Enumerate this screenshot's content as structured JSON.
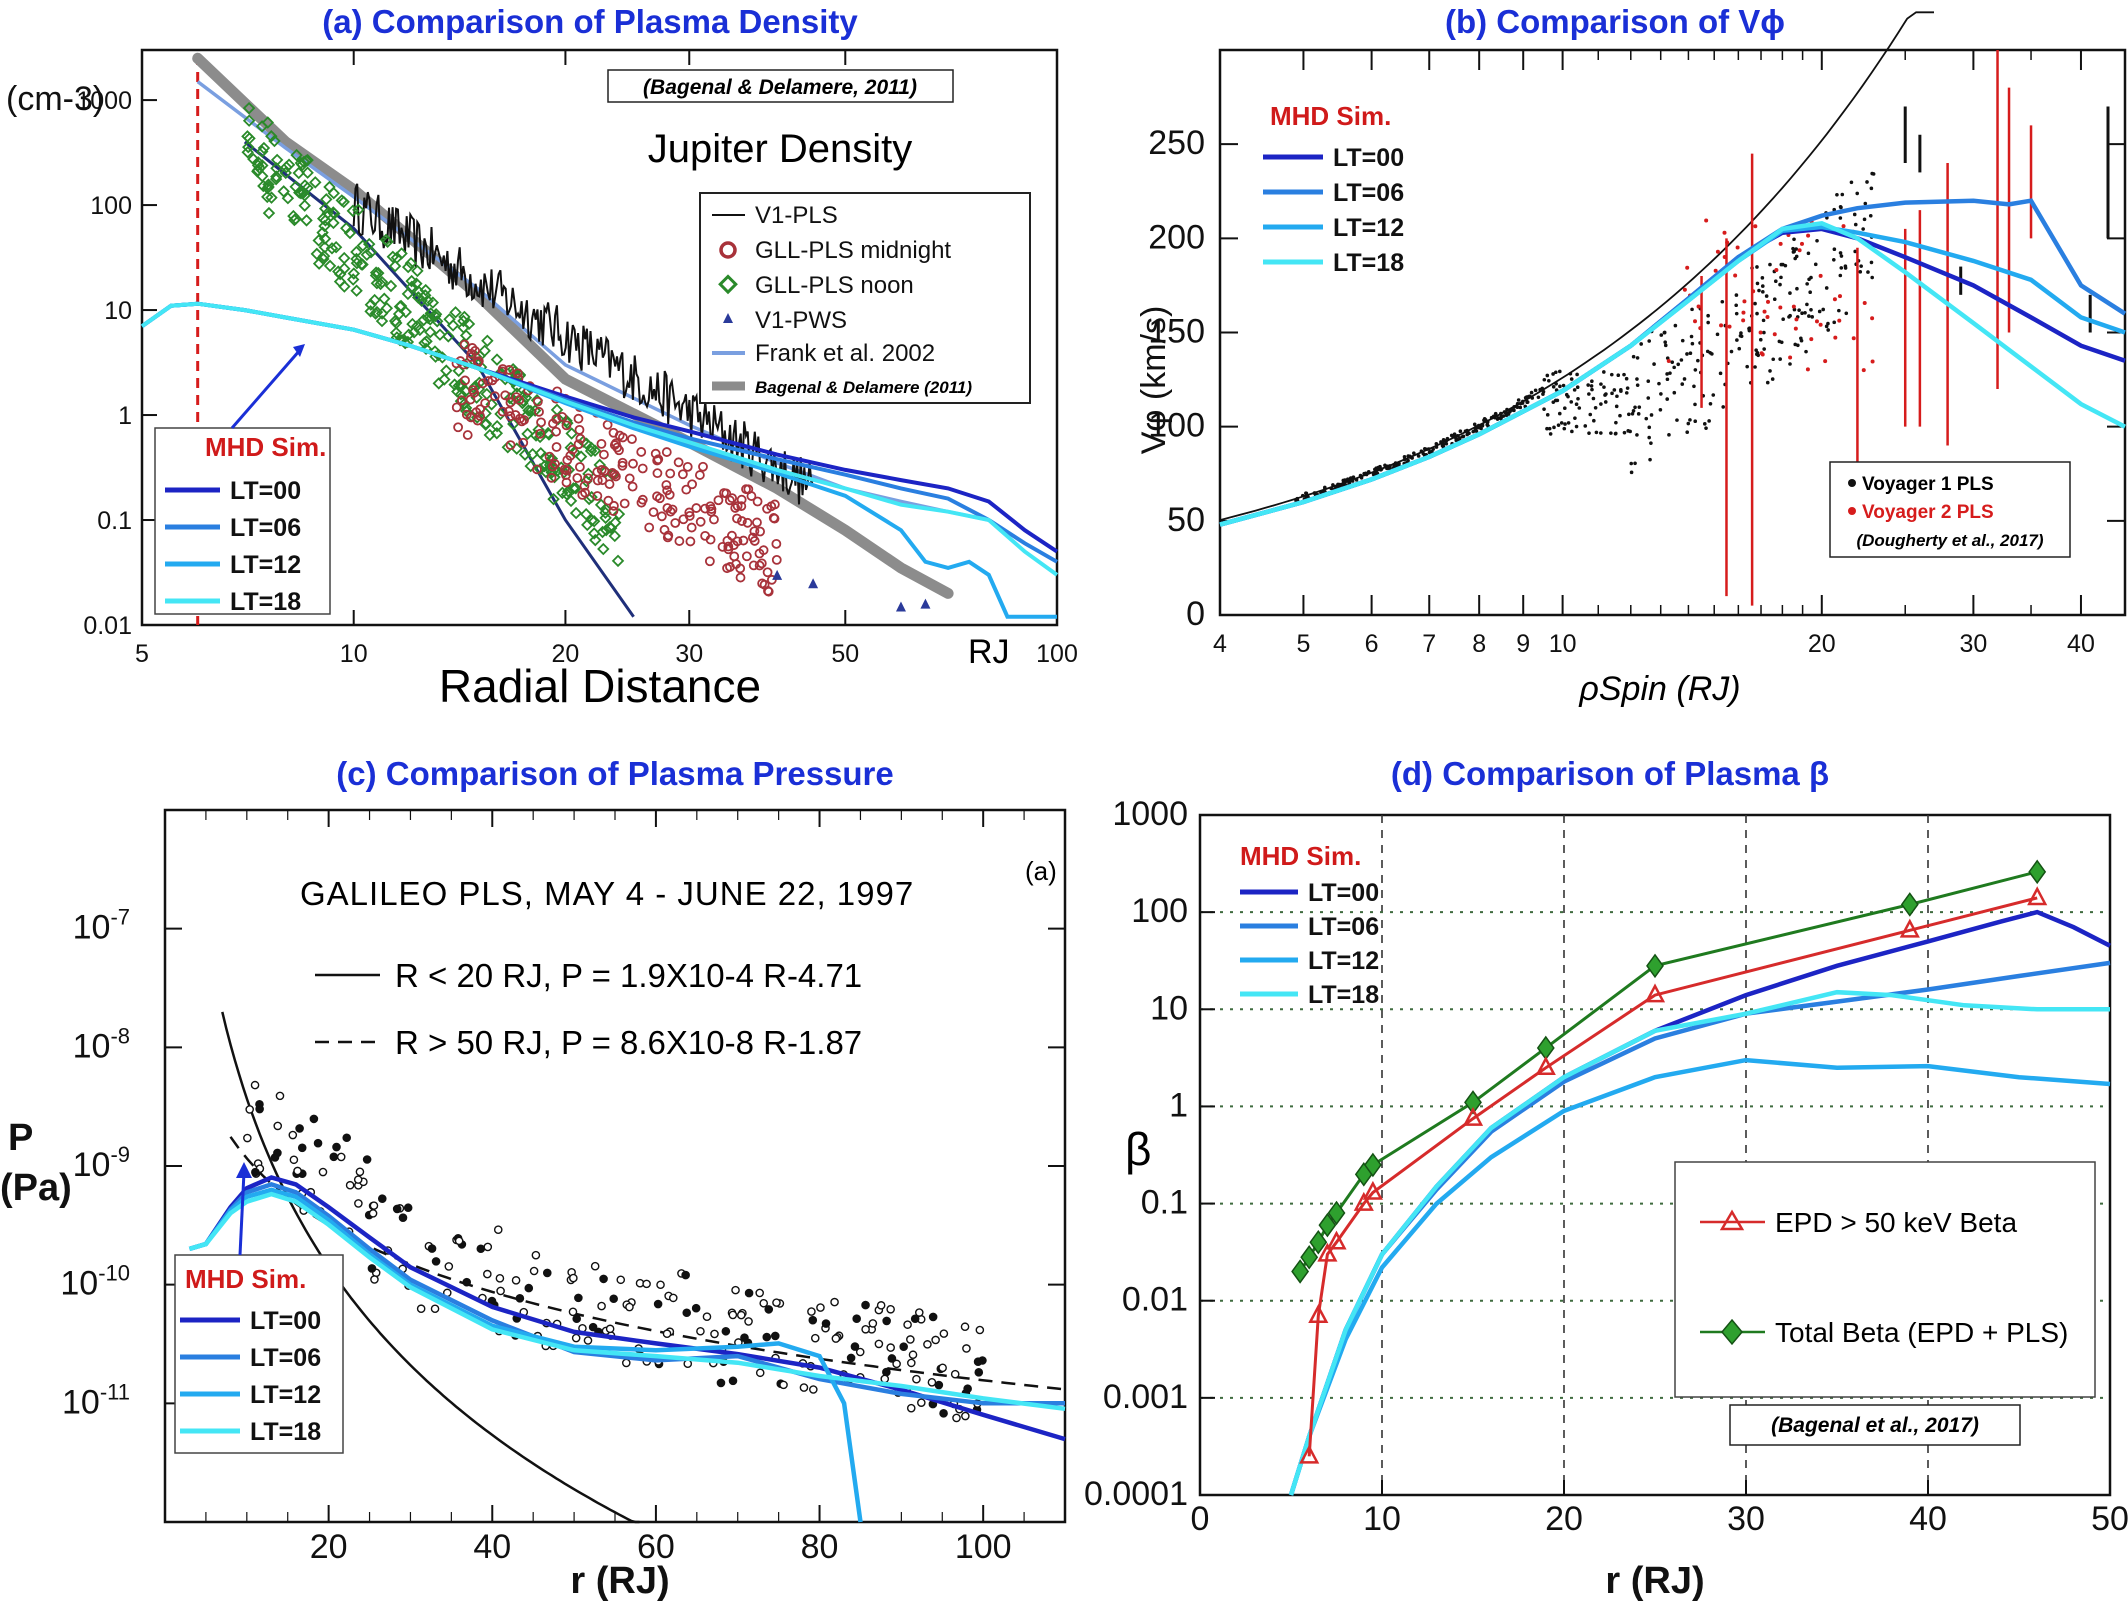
{
  "colors": {
    "title_blue": "#1a2fd6",
    "mhd_label_red": "#d01a1a",
    "lt00": "#1c24c4",
    "lt06": "#2a7fe0",
    "lt12": "#23aaf0",
    "lt18": "#44e6f5",
    "galileo_midnight": "#a8323a",
    "galileo_noon": "#2a8a2a",
    "bagenal_model": "#8c8c8c",
    "frank_model": "#7a9fe0",
    "voyager2": "#d61c1c",
    "epd_red": "#d62b2b",
    "total_green": "#1f7a1f"
  },
  "chart_data": [
    {
      "panel": "a",
      "type": "line",
      "title": "(a) Comparison of Plasma Density",
      "unit_label": "(cm-3)",
      "annotation": "Jupiter Density",
      "citation": "(Bagenal & Delamere, 2011)",
      "xlabel": "Radial Distance",
      "xunit": "RJ",
      "xscale": "log",
      "yscale": "log",
      "xlim": [
        5,
        100
      ],
      "ylim": [
        0.01,
        3000
      ],
      "x_ticks": [
        "5",
        "10",
        "20",
        "30",
        "50",
        "100"
      ],
      "y_ticks": [
        "0.01",
        "0.1",
        "1",
        "10",
        "100",
        "1000"
      ],
      "reference_line_x": 6,
      "legend": [
        "V1-PLS",
        "GLL-PLS midnight",
        "GLL-PLS noon",
        "V1-PWS",
        "Frank et al. 2002",
        "Bagenal & Delamere (2011)"
      ],
      "mhd_legend_title": "MHD Sim.",
      "series": [
        {
          "name": "LT=00",
          "x": [
            5,
            5.5,
            6,
            7,
            8,
            10,
            12,
            15,
            20,
            25,
            30,
            40,
            50,
            60,
            70,
            80,
            90,
            100
          ],
          "y": [
            7,
            11,
            11.5,
            10,
            8.5,
            6.5,
            4.6,
            2.8,
            1.5,
            0.95,
            0.7,
            0.42,
            0.3,
            0.24,
            0.2,
            0.15,
            0.08,
            0.05
          ]
        },
        {
          "name": "LT=06",
          "x": [
            5,
            5.5,
            6,
            7,
            8,
            10,
            12,
            15,
            20,
            25,
            30,
            40,
            50,
            60,
            70,
            80,
            90,
            100
          ],
          "y": [
            7,
            11,
            11.5,
            10,
            8.5,
            6.5,
            4.6,
            2.8,
            1.4,
            0.85,
            0.6,
            0.38,
            0.27,
            0.2,
            0.16,
            0.1,
            0.06,
            0.04
          ]
        },
        {
          "name": "LT=12",
          "x": [
            5,
            5.5,
            6,
            7,
            8,
            10,
            12,
            15,
            20,
            25,
            30,
            40,
            50,
            60,
            65,
            70,
            75,
            80,
            85,
            90,
            100
          ],
          "y": [
            7,
            11,
            11.5,
            10,
            8.5,
            6.5,
            4.6,
            2.8,
            1.3,
            0.75,
            0.5,
            0.28,
            0.17,
            0.08,
            0.04,
            0.035,
            0.04,
            0.03,
            0.012,
            0.012,
            0.012
          ]
        },
        {
          "name": "LT=18",
          "x": [
            5,
            5.5,
            6,
            7,
            8,
            10,
            12,
            15,
            20,
            25,
            30,
            40,
            50,
            60,
            70,
            80,
            90,
            100
          ],
          "y": [
            7,
            11,
            11.5,
            10,
            8.5,
            6.5,
            4.6,
            2.8,
            1.35,
            0.8,
            0.55,
            0.3,
            0.2,
            0.14,
            0.12,
            0.1,
            0.05,
            0.03
          ]
        }
      ]
    },
    {
      "panel": "b",
      "type": "line",
      "title": "(b) Comparison of Vϕ",
      "ylabel": "Vφ (km/s)",
      "xlabel": "ρSpin (RJ)",
      "xscale": "log",
      "xlim": [
        4,
        45
      ],
      "ylim": [
        0,
        300
      ],
      "x_ticks": [
        "4",
        "5",
        "6",
        "7",
        "8",
        "9",
        "10",
        "20",
        "30",
        "40"
      ],
      "y_ticks": [
        "0",
        "50",
        "100",
        "150",
        "200",
        "250"
      ],
      "legend": [
        "Voyager 1 PLS",
        "Voyager 2 PLS"
      ],
      "citation": "(Dougherty et al., 2017)",
      "mhd_legend_title": "MHD Sim.",
      "series": [
        {
          "name": "LT=00",
          "x": [
            4,
            5,
            6,
            7,
            8,
            10,
            12,
            14,
            16,
            18,
            20,
            22,
            25,
            30,
            35,
            40,
            45
          ],
          "y": [
            48,
            60,
            72,
            84,
            96,
            119,
            143,
            168,
            190,
            203,
            205,
            200,
            190,
            175,
            158,
            143,
            135
          ]
        },
        {
          "name": "LT=06",
          "x": [
            4,
            5,
            6,
            7,
            8,
            10,
            12,
            14,
            16,
            18,
            20,
            22,
            25,
            30,
            33,
            35,
            40,
            45
          ],
          "y": [
            48,
            60,
            72,
            84,
            96,
            119,
            143,
            168,
            190,
            205,
            212,
            216,
            219,
            220,
            218,
            220,
            175,
            160
          ]
        },
        {
          "name": "LT=12",
          "x": [
            4,
            5,
            6,
            7,
            8,
            10,
            12,
            14,
            16,
            18,
            20,
            22,
            25,
            30,
            35,
            40,
            45
          ],
          "y": [
            48,
            60,
            72,
            84,
            96,
            119,
            143,
            167,
            188,
            204,
            206,
            203,
            198,
            188,
            178,
            158,
            150
          ]
        },
        {
          "name": "LT=18",
          "x": [
            4,
            5,
            6,
            7,
            8,
            10,
            12,
            14,
            16,
            18,
            20,
            22,
            25,
            30,
            35,
            40,
            45
          ],
          "y": [
            48,
            60,
            72,
            84,
            96,
            119,
            143,
            167,
            188,
            205,
            208,
            200,
            182,
            155,
            132,
            112,
            100
          ]
        }
      ]
    },
    {
      "panel": "c",
      "type": "line",
      "title": "(c) Comparison of Plasma Pressure",
      "ylabel_lines": [
        "P",
        "(Pa)"
      ],
      "xlabel": "r (RJ)",
      "yscale": "log",
      "xlim": [
        0,
        110
      ],
      "ylim": [
        1e-12,
        1e-06
      ],
      "x_ticks": [
        "20",
        "40",
        "60",
        "80",
        "100"
      ],
      "y_ticks": [
        "10-7",
        "10-8",
        "10-9",
        "10-10",
        "10-11"
      ],
      "panel_tag": "(a)",
      "annotation_lines": [
        "GALILEO PLS, MAY 4 - JUNE 22, 1997",
        "R < 20 RJ, P = 1.9X10-4 R-4.71",
        "R > 50 RJ, P = 8.6X10-8 R-1.87"
      ],
      "mhd_legend_title": "MHD Sim.",
      "series": [
        {
          "name": "LT=00",
          "x": [
            3,
            5,
            8,
            10,
            13,
            16,
            20,
            25,
            30,
            40,
            50,
            60,
            70,
            80,
            90,
            100,
            110
          ],
          "y": [
            2e-10,
            2.2e-10,
            4.5e-10,
            6.5e-10,
            8e-10,
            7e-10,
            4.5e-10,
            2.5e-10,
            1.4e-10,
            6.5e-11,
            4e-11,
            3.2e-11,
            2.6e-11,
            2e-11,
            1.3e-11,
            8e-12,
            5e-12
          ]
        },
        {
          "name": "LT=06",
          "x": [
            3,
            5,
            8,
            10,
            13,
            16,
            20,
            25,
            30,
            40,
            50,
            60,
            70,
            80,
            90,
            100,
            110
          ],
          "y": [
            2e-10,
            2.2e-10,
            4.3e-10,
            6e-10,
            7e-10,
            6e-10,
            3.8e-10,
            2e-10,
            1.1e-10,
            5e-11,
            2.7e-11,
            2.3e-11,
            2.5e-11,
            1.6e-11,
            1.2e-11,
            1e-11,
            1e-11
          ]
        },
        {
          "name": "LT=12",
          "x": [
            3,
            5,
            8,
            10,
            13,
            16,
            20,
            25,
            30,
            40,
            50,
            60,
            70,
            75,
            80,
            83,
            85
          ],
          "y": [
            2e-10,
            2.2e-10,
            4.2e-10,
            5.5e-10,
            6.3e-10,
            5.5e-10,
            3.5e-10,
            1.8e-10,
            1e-10,
            4.5e-11,
            3e-11,
            2.8e-11,
            3e-11,
            3.2e-11,
            2.5e-11,
            1e-11,
            1e-12
          ]
        },
        {
          "name": "LT=18",
          "x": [
            3,
            5,
            8,
            10,
            13,
            16,
            20,
            25,
            30,
            40,
            50,
            60,
            70,
            80,
            90,
            100,
            110
          ],
          "y": [
            2e-10,
            2.2e-10,
            4e-10,
            5e-10,
            5.8e-10,
            5e-10,
            3.2e-10,
            1.7e-10,
            9.5e-11,
            4.2e-11,
            2.8e-11,
            2.5e-11,
            2.2e-11,
            1.7e-11,
            1.4e-11,
            1.1e-11,
            9e-12
          ]
        }
      ]
    },
    {
      "panel": "d",
      "type": "line",
      "title": "(d) Comparison of Plasma β",
      "ylabel": "β",
      "xlabel": "r (RJ)",
      "yscale": "log",
      "xlim": [
        0,
        50
      ],
      "ylim": [
        0.0001,
        1000
      ],
      "x_ticks": [
        "0",
        "10",
        "20",
        "30",
        "40",
        "50"
      ],
      "y_ticks": [
        "0.0001",
        "0.001",
        "0.01",
        "0.1",
        "1",
        "10",
        "100",
        "1000"
      ],
      "grid": true,
      "legend": [
        "EPD > 50 keV Beta",
        "Total Beta (EPD + PLS)"
      ],
      "citation": "(Bagenal et al., 2017)",
      "mhd_legend_title": "MHD Sim.",
      "observations": [
        {
          "name": "EPD > 50 keV Beta",
          "x": [
            6,
            6.5,
            7,
            7.5,
            9,
            9.5,
            15,
            19,
            25,
            39,
            46
          ],
          "y": [
            0.00025,
            0.007,
            0.03,
            0.04,
            0.1,
            0.13,
            0.75,
            2.5,
            14,
            65,
            140
          ]
        },
        {
          "name": "Total Beta (EPD + PLS)",
          "x": [
            5.5,
            6,
            6.5,
            7,
            7.5,
            9,
            9.5,
            15,
            19,
            25,
            39,
            46
          ],
          "y": [
            0.02,
            0.028,
            0.04,
            0.06,
            0.08,
            0.2,
            0.25,
            1.1,
            4,
            28,
            120,
            260
          ]
        }
      ],
      "series": [
        {
          "name": "LT=00",
          "x": [
            5,
            6,
            8,
            10,
            13,
            16,
            20,
            25,
            30,
            35,
            40,
            44,
            46,
            48,
            50
          ],
          "y": [
            0.0001,
            0.0004,
            0.005,
            0.03,
            0.15,
            0.6,
            2,
            6,
            14,
            28,
            50,
            80,
            100,
            70,
            45
          ]
        },
        {
          "name": "LT=06",
          "x": [
            5,
            6,
            8,
            10,
            13,
            16,
            20,
            25,
            30,
            35,
            40,
            45,
            50
          ],
          "y": [
            0.0001,
            0.0004,
            0.005,
            0.03,
            0.14,
            0.55,
            1.8,
            5,
            9,
            12,
            16,
            22,
            30
          ]
        },
        {
          "name": "LT=12",
          "x": [
            5,
            6,
            8,
            10,
            13,
            16,
            20,
            25,
            30,
            35,
            40,
            45,
            50
          ],
          "y": [
            0.0001,
            0.0004,
            0.004,
            0.022,
            0.1,
            0.3,
            0.9,
            2,
            3,
            2.5,
            2.6,
            2,
            1.7
          ]
        },
        {
          "name": "LT=18",
          "x": [
            5,
            6,
            8,
            10,
            13,
            16,
            20,
            25,
            30,
            35,
            38,
            42,
            46,
            50
          ],
          "y": [
            0.0001,
            0.0004,
            0.005,
            0.03,
            0.15,
            0.6,
            2,
            6,
            9,
            15,
            14,
            11,
            10,
            10
          ]
        }
      ]
    }
  ]
}
